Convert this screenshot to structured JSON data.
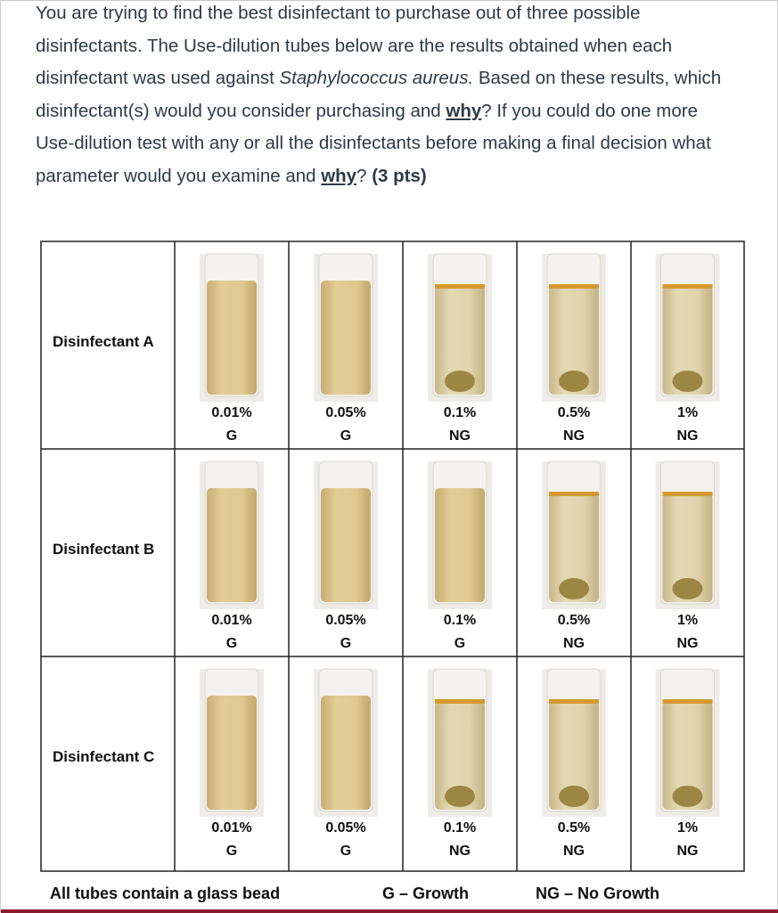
{
  "question": {
    "segments": [
      "You are trying to find the best disinfectant to purchase out of three possible disinfectants. The Use-dilution tubes below are the results obtained when each disinfectant was used against ",
      "Staphylococcus aureus.",
      " Based on these results, which disinfectant(s) would you consider purchasing and ",
      "why",
      "? If you could do one more Use-dilution test with any or all the disinfectants before making a final decision what parameter would you examine and ",
      "why",
      "? ",
      "(3 pts)"
    ]
  },
  "table": {
    "rows": [
      {
        "label": "Disinfectant A",
        "cells": [
          {
            "concentration": "0.01%",
            "result": "G"
          },
          {
            "concentration": "0.05%",
            "result": "G"
          },
          {
            "concentration": "0.1%",
            "result": "NG"
          },
          {
            "concentration": "0.5%",
            "result": "NG"
          },
          {
            "concentration": "1%",
            "result": "NG"
          }
        ]
      },
      {
        "label": "Disinfectant B",
        "cells": [
          {
            "concentration": "0.01%",
            "result": "G"
          },
          {
            "concentration": "0.05%",
            "result": "G"
          },
          {
            "concentration": "0.1%",
            "result": "G"
          },
          {
            "concentration": "0.5%",
            "result": "NG"
          },
          {
            "concentration": "1%",
            "result": "NG"
          }
        ]
      },
      {
        "label": "Disinfectant C",
        "cells": [
          {
            "concentration": "0.01%",
            "result": "G"
          },
          {
            "concentration": "0.05%",
            "result": "G"
          },
          {
            "concentration": "0.1%",
            "result": "NG"
          },
          {
            "concentration": "0.5%",
            "result": "NG"
          },
          {
            "concentration": "1%",
            "result": "NG"
          }
        ]
      }
    ]
  },
  "footer": {
    "note": "All tubes contain a glass bead",
    "legend_growth": "G – Growth",
    "legend_no_growth": "NG – No Growth"
  }
}
